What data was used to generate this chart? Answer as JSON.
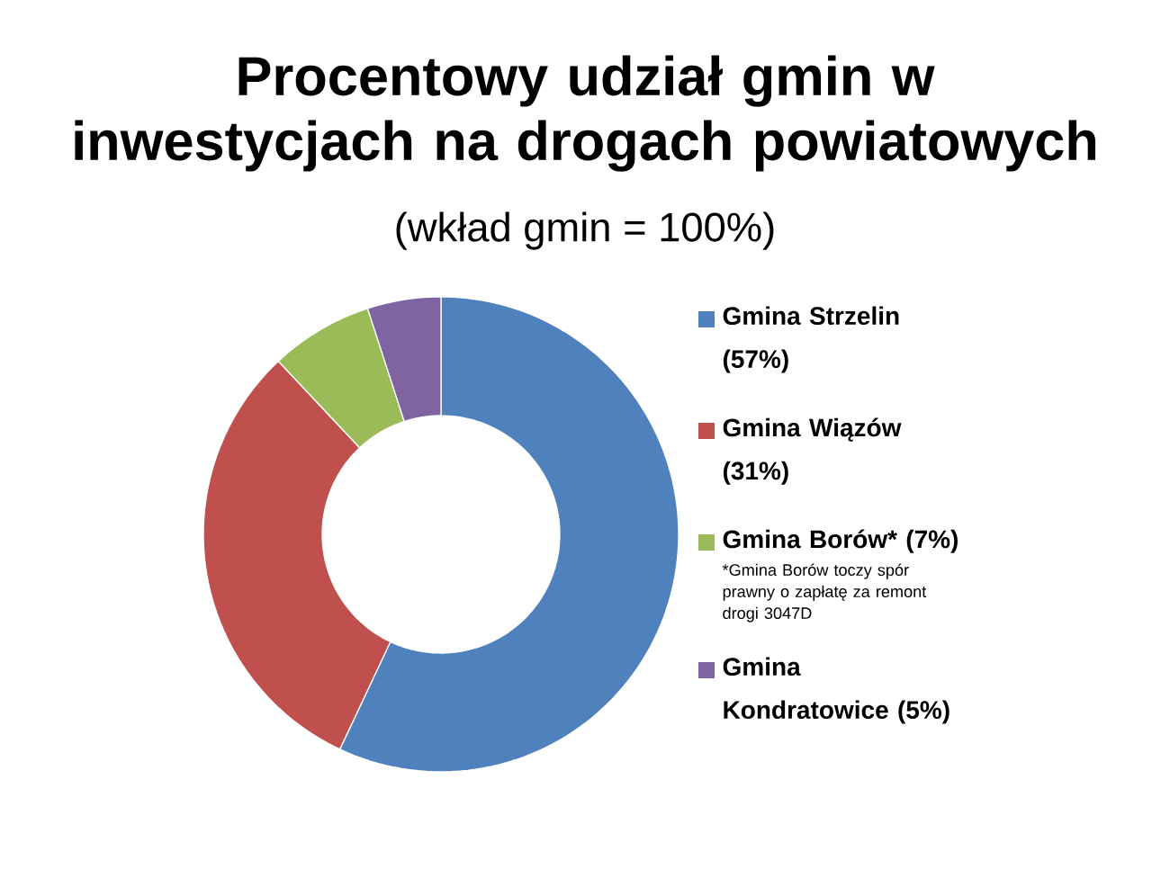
{
  "chart_data": {
    "type": "donut",
    "title": "Procentowy udział gmin w inwestycjach na drogach powiatowych",
    "subtitle": "(wkład gmin = 100%)",
    "categories": [
      "Gmina Strzelin (57%)",
      "Gmina Wiązów (31%)",
      "Gmina Borów* (7%)",
      "Gmina Kondratowice (5%)"
    ],
    "values": [
      57,
      31,
      7,
      5
    ],
    "colors": [
      "#4f81bd",
      "#c0504d",
      "#9bbb59",
      "#8064a2"
    ],
    "legend": "right",
    "annotations": [
      "*Gmina Borów toczy spór prawny o zapłatę za remont drogi 3047D"
    ]
  }
}
